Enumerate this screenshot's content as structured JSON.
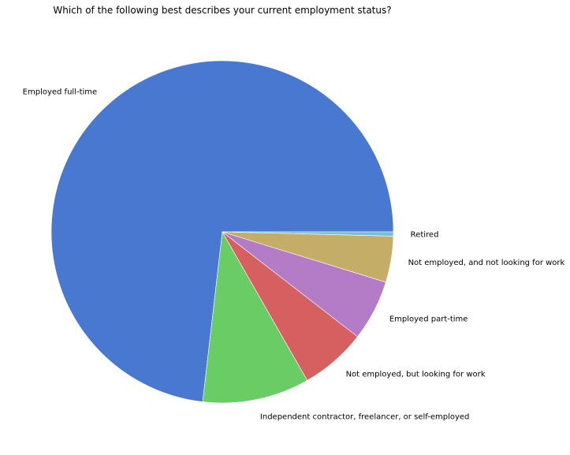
{
  "chart_data": {
    "type": "pie",
    "title": "Which of the following best describes your current employment status?",
    "start_angle_deg": 0,
    "direction": "counterclockwise",
    "slices": [
      {
        "label": "Employed full-time",
        "value": 73.9,
        "color": "#4878d0"
      },
      {
        "label": "Independent contractor, freelancer, or self-employed",
        "value": 10.2,
        "color": "#6acc64"
      },
      {
        "label": "Not employed, but looking for work",
        "value": 6.3,
        "color": "#d65f5f"
      },
      {
        "label": "Employed part-time",
        "value": 5.8,
        "color": "#b47cc7"
      },
      {
        "label": "Not employed, and not looking for work",
        "value": 4.4,
        "color": "#c4ad66"
      },
      {
        "label": "Retired",
        "value": 0.4,
        "color": "#77bedb"
      }
    ]
  }
}
